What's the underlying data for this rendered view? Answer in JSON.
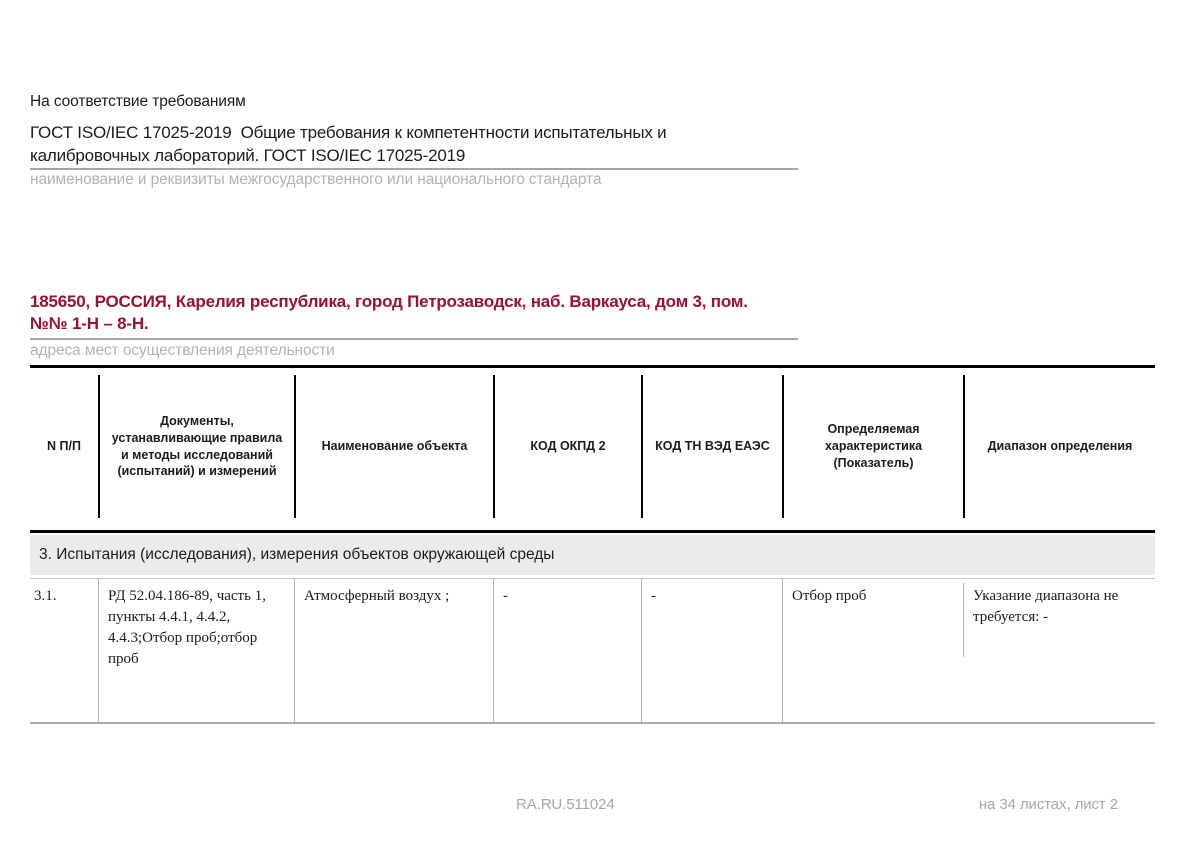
{
  "intro": {
    "compliance_title": "На соответствие требованиям"
  },
  "standard": {
    "lines": [
      "ГОСТ ISO/IEC 17025-2019  Общие требования к компетентности испытательных и",
      "калибровочных лабораторий. ГОСТ ISO/IEC 17025-2019"
    ],
    "caption": "наименование и реквизиты межгосударственного или национального стандарта"
  },
  "address": {
    "lines": [
      "185650, РОССИЯ, Карелия республика, город Петрозаводск, наб. Варкауса, дом 3, пом.",
      "№№ 1-Н – 8-Н."
    ],
    "caption": "адреса мест осуществления деятельности",
    "accent_color": "#9c1132"
  },
  "table": {
    "headers": [
      "N П/П",
      "Документы,\nустанавливающие правила\nи методы исследований\n(испытаний) и измерений",
      "Наименование объекта",
      "КОД ОКПД 2",
      "КОД ТН ВЭД ЕАЭС",
      "Определяемая\nхарактеристика\n(Показатель)",
      "Диапазон определения"
    ],
    "section_title": "3. Испытания (исследования), измерения объектов окружающей среды",
    "rows": [
      {
        "num": "3.1.",
        "documents": "РД 52.04.186-89, часть 1,\nпункты 4.4.1, 4.4.2,\n4.4.3;Отбор проб;отбор проб",
        "object_name": "Атмосферный воздух ;",
        "okpd2": "-",
        "tnved": "-",
        "characteristic": "Отбор проб",
        "range": "Указание диапазона не\nтребуется: -"
      }
    ]
  },
  "footer": {
    "accreditation_code": "RA.RU.511024",
    "sheet_info": "на 34 листах, лист 2"
  }
}
